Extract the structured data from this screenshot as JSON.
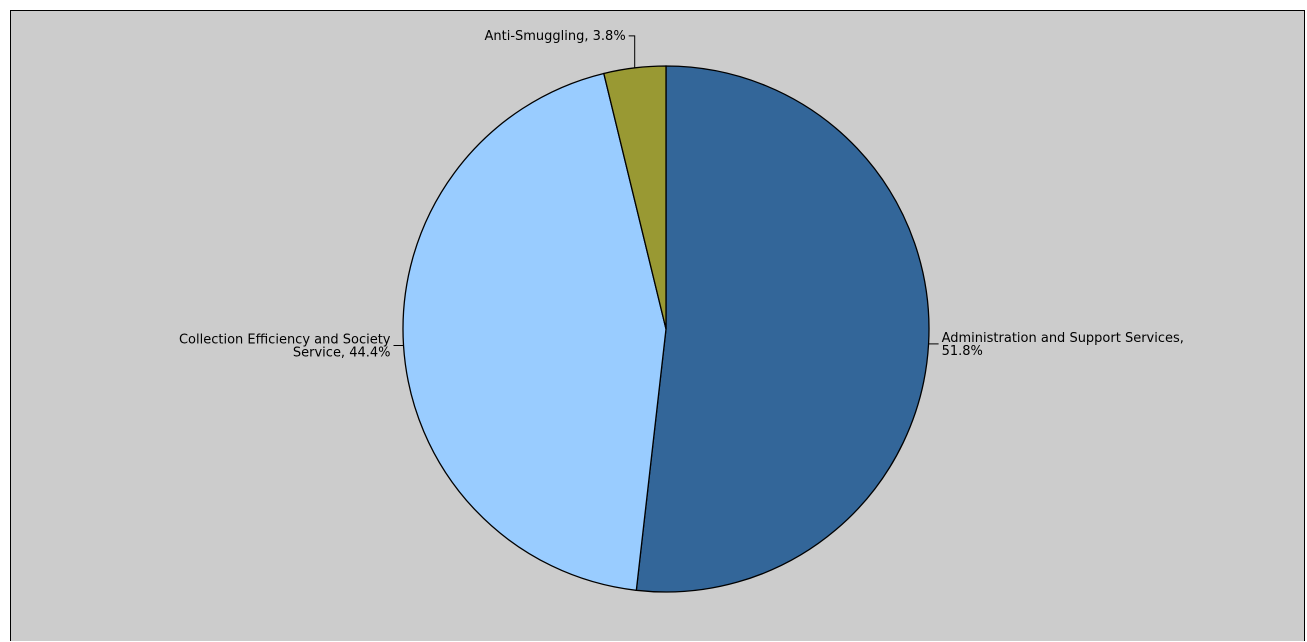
{
  "chart_data": {
    "type": "pie",
    "title": "",
    "start_angle_deg": 0,
    "direction": "clockwise",
    "slices": [
      {
        "name": "Administration and Support Services",
        "value": 51.8,
        "label_lines": [
          "Administration and Support Services,",
          "51.8%"
        ],
        "color": "#336699"
      },
      {
        "name": "Collection Efficiency and Society Service",
        "value": 44.4,
        "label_lines": [
          "Collection Efficiency and Society",
          "Service, 44.4%"
        ],
        "color": "#99ccff"
      },
      {
        "name": "Anti-Smuggling",
        "value": 3.8,
        "label_lines": [
          "Anti-Smuggling, 3.8%"
        ],
        "color": "#999933"
      }
    ],
    "background_color": "#cccccc",
    "legend": "none"
  }
}
